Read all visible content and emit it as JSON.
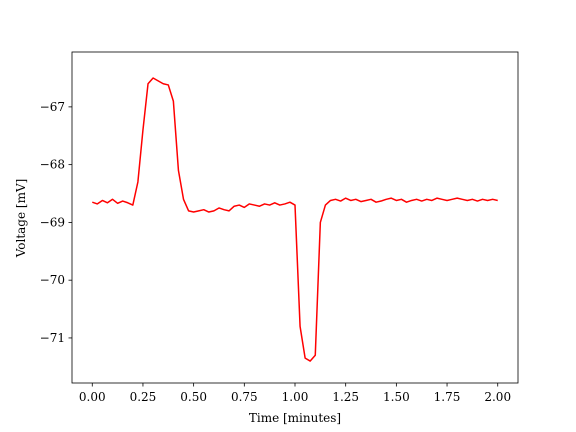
{
  "chart_data": {
    "type": "line",
    "x_label": "Time [minutes]",
    "y_label": "Voltage [mV]",
    "x": [
      0,
      0.025,
      0.05,
      0.075,
      0.1,
      0.125,
      0.15,
      0.175,
      0.2,
      0.225,
      0.25,
      0.275,
      0.3,
      0.325,
      0.35,
      0.375,
      0.4,
      0.425,
      0.45,
      0.475,
      0.5,
      0.525,
      0.55,
      0.575,
      0.6,
      0.625,
      0.65,
      0.675,
      0.7,
      0.725,
      0.75,
      0.775,
      0.8,
      0.825,
      0.85,
      0.875,
      0.9,
      0.925,
      0.95,
      0.975,
      1.0,
      1.025,
      1.05,
      1.075,
      1.1,
      1.125,
      1.15,
      1.175,
      1.2,
      1.225,
      1.25,
      1.275,
      1.3,
      1.325,
      1.35,
      1.375,
      1.4,
      1.425,
      1.45,
      1.475,
      1.5,
      1.525,
      1.55,
      1.575,
      1.6,
      1.625,
      1.65,
      1.675,
      1.7,
      1.725,
      1.75,
      1.775,
      1.8,
      1.825,
      1.85,
      1.875,
      1.9,
      1.925,
      1.95,
      1.975,
      2.0
    ],
    "series": [
      {
        "color": "#ff0000",
        "values": [
          -68.65,
          -68.68,
          -68.62,
          -68.66,
          -68.6,
          -68.67,
          -68.63,
          -68.66,
          -68.7,
          -68.3,
          -67.4,
          -66.6,
          -66.5,
          -66.55,
          -66.6,
          -66.62,
          -66.9,
          -68.1,
          -68.6,
          -68.8,
          -68.82,
          -68.8,
          -68.78,
          -68.82,
          -68.8,
          -68.75,
          -68.78,
          -68.8,
          -68.72,
          -68.7,
          -68.74,
          -68.68,
          -68.7,
          -68.72,
          -68.68,
          -68.7,
          -68.66,
          -68.7,
          -68.68,
          -68.65,
          -68.7,
          -70.8,
          -71.35,
          -71.4,
          -71.3,
          -69.0,
          -68.7,
          -68.62,
          -68.6,
          -68.63,
          -68.58,
          -68.62,
          -68.6,
          -68.64,
          -68.62,
          -68.6,
          -68.65,
          -68.63,
          -68.6,
          -68.58,
          -68.62,
          -68.6,
          -68.65,
          -68.62,
          -68.6,
          -68.63,
          -68.6,
          -68.62,
          -68.58,
          -68.6,
          -68.62,
          -68.6,
          -68.58,
          -68.6,
          -68.62,
          -68.6,
          -68.63,
          -68.6,
          -68.62,
          -68.6,
          -68.62
        ]
      }
    ],
    "xlim": [
      -0.1,
      2.1
    ],
    "ylim": [
      -71.78,
      -66.05
    ],
    "xticks": [
      {
        "value": 0,
        "label": "0.00"
      },
      {
        "value": 0.25,
        "label": "0.25"
      },
      {
        "value": 0.5,
        "label": "0.50"
      },
      {
        "value": 0.75,
        "label": "0.75"
      },
      {
        "value": 1,
        "label": "1.00"
      },
      {
        "value": 1.25,
        "label": "1.25"
      },
      {
        "value": 1.5,
        "label": "1.50"
      },
      {
        "value": 1.75,
        "label": "1.75"
      },
      {
        "value": 2,
        "label": "2.00"
      }
    ],
    "yticks": [
      {
        "value": -71,
        "label": "−71"
      },
      {
        "value": -70,
        "label": "−70"
      },
      {
        "value": -69,
        "label": "−69"
      },
      {
        "value": -68,
        "label": "−68"
      },
      {
        "value": -67,
        "label": "−67"
      }
    ]
  }
}
